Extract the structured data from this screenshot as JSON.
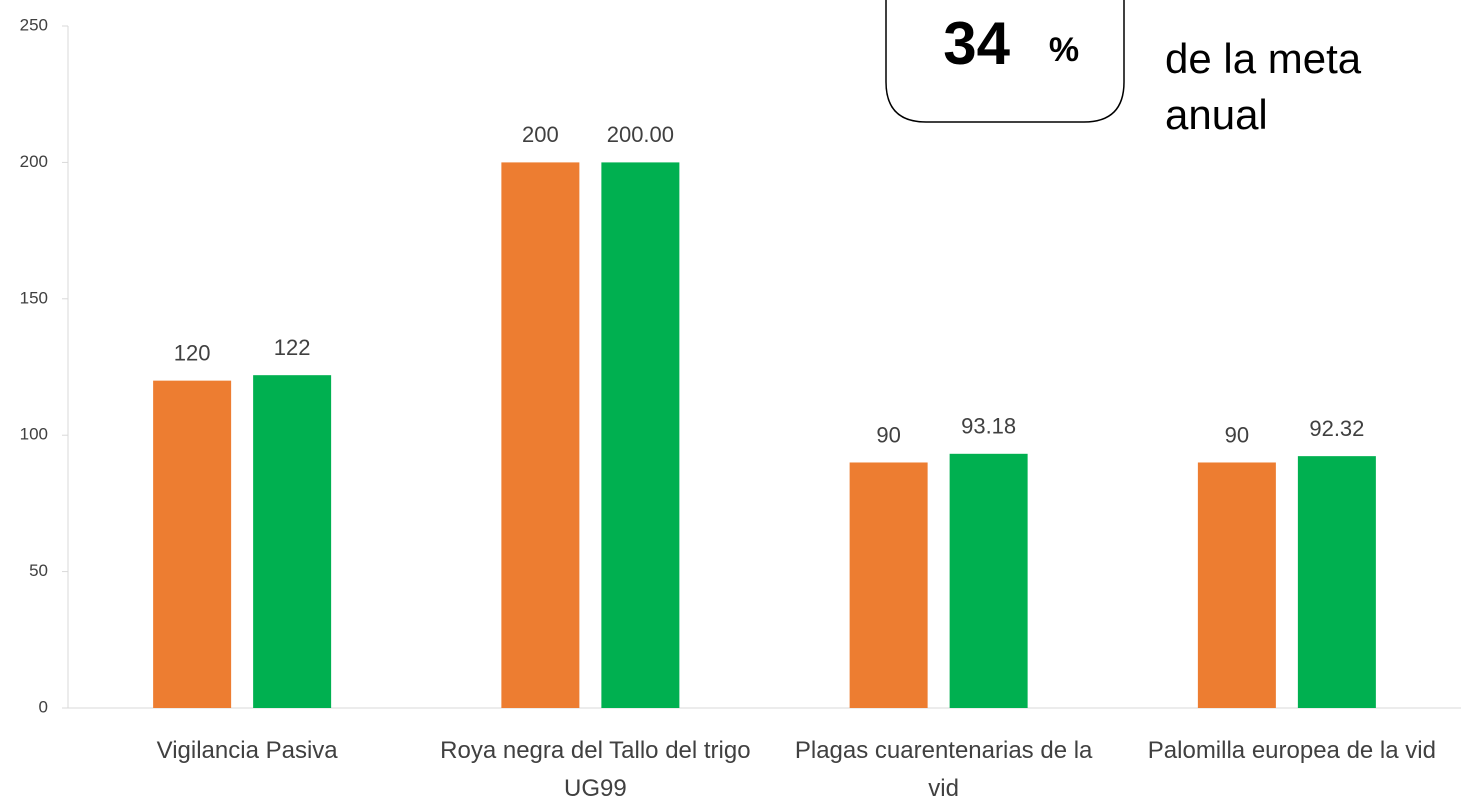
{
  "chart_data": {
    "type": "bar",
    "categories": [
      "Vigilancia Pasiva",
      "Roya negra del Tallo del trigo UG99",
      "Plagas cuarentenarias de la vid",
      "Palomilla europea de la vid"
    ],
    "series": [
      {
        "color": "#ed7d31",
        "values": [
          120,
          200,
          90,
          90
        ]
      },
      {
        "color": "#00b050",
        "values": [
          122,
          200,
          93.18,
          92.32
        ],
        "value_labels": [
          "122",
          "200.00",
          "93.18",
          "92.32"
        ]
      }
    ],
    "ylim": [
      0,
      250
    ],
    "yticks": [
      0,
      50,
      100,
      150,
      200,
      250
    ],
    "grid": false,
    "annotation": {
      "value": "34",
      "unit": "%",
      "text": [
        "de la meta",
        "anual"
      ]
    }
  }
}
